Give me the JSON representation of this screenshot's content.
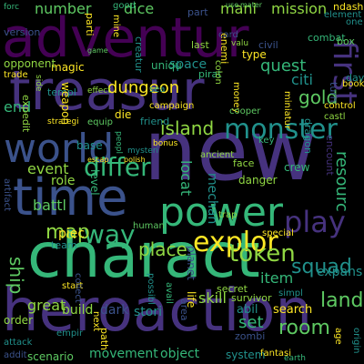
{
  "background": "#000000",
  "palette": {
    "deep_purple": "#440154",
    "indigo": "#46327e",
    "blue_violet": "#3b528b",
    "steel_blue": "#365c8d",
    "teal": "#21918c",
    "green": "#35b779",
    "lime": "#5ec962",
    "light_green": "#90d743",
    "yellow": "#fde725"
  },
  "words": [
    {
      "text": "adventur"
    },
    {
      "text": "treasur"
    },
    {
      "text": "new"
    },
    {
      "text": "charact"
    },
    {
      "text": "heroaction"
    },
    {
      "text": "time"
    },
    {
      "text": "world"
    },
    {
      "text": "power"
    },
    {
      "text": "first"
    },
    {
      "text": "monster"
    },
    {
      "text": "play"
    },
    {
      "text": "differ"
    },
    {
      "text": "explor"
    },
    {
      "text": "way"
    },
    {
      "text": "token"
    },
    {
      "text": "island"
    },
    {
      "text": "map"
    },
    {
      "text": "place"
    },
    {
      "text": "gold"
    },
    {
      "text": "ship"
    },
    {
      "text": "land"
    },
    {
      "text": "room"
    },
    {
      "text": "squad"
    },
    {
      "text": "quest"
    },
    {
      "text": "dungeon"
    },
    {
      "text": "mission"
    },
    {
      "text": "number"
    },
    {
      "text": "dice"
    },
    {
      "text": "mani"
    },
    {
      "text": "good"
    },
    {
      "text": "part"
    },
    {
      "text": "ndash"
    },
    {
      "text": "end"
    },
    {
      "text": "event"
    },
    {
      "text": "role"
    },
    {
      "text": "battl"
    },
    {
      "text": "set"
    },
    {
      "text": "item"
    },
    {
      "text": "expans"
    },
    {
      "text": "resourc"
    },
    {
      "text": "order"
    },
    {
      "text": "skill"
    },
    {
      "text": "stori"
    },
    {
      "text": "dark"
    },
    {
      "text": "great"
    },
    {
      "text": "build"
    },
    {
      "text": "abil"
    },
    {
      "text": "search"
    },
    {
      "text": "system"
    },
    {
      "text": "movement"
    },
    {
      "text": "object"
    },
    {
      "text": "scenario"
    },
    {
      "text": "locat"
    },
    {
      "text": "danger"
    },
    {
      "text": "space"
    },
    {
      "text": "citi"
    },
    {
      "text": "mechan"
    },
    {
      "text": "level"
    },
    {
      "text": "uniqu"
    },
    {
      "text": "magic"
    },
    {
      "text": "opponent"
    },
    {
      "text": "piec"
    },
    {
      "text": "team"
    },
    {
      "text": "life"
    },
    {
      "text": "secret"
    },
    {
      "text": "survivor"
    },
    {
      "text": "human"
    },
    {
      "text": "planet"
    },
    {
      "text": "type"
    },
    {
      "text": "zombi"
    },
    {
      "text": "area"
    },
    {
      "text": "path"
    },
    {
      "text": "face"
    },
    {
      "text": "base"
    },
    {
      "text": "die"
    },
    {
      "text": "strategi"
    },
    {
      "text": "combat"
    },
    {
      "text": "crew"
    },
    {
      "text": "version"
    },
    {
      "text": "forc"
    },
    {
      "text": "parti"
    },
    {
      "text": "creatur"
    },
    {
      "text": "last"
    },
    {
      "text": "enemi"
    },
    {
      "text": "civil"
    },
    {
      "text": "box"
    },
    {
      "text": "element"
    },
    {
      "text": "trade"
    },
    {
      "text": "expedit"
    },
    {
      "text": "templ"
    },
    {
      "text": "weapon"
    },
    {
      "text": "sea"
    },
    {
      "text": "friend"
    },
    {
      "text": "equip"
    },
    {
      "text": "campaign"
    },
    {
      "text": "pirat"
    },
    {
      "text": "money"
    },
    {
      "text": "cooper"
    },
    {
      "text": "ancient"
    },
    {
      "text": "key"
    },
    {
      "text": "miniatur"
    },
    {
      "text": "control"
    },
    {
      "text": "castl"
    },
    {
      "text": "dragon"
    },
    {
      "text": "encount"
    },
    {
      "text": "artifact"
    },
    {
      "text": "attack"
    },
    {
      "text": "addit"
    },
    {
      "text": "empir"
    },
    {
      "text": "start"
    },
    {
      "text": "special"
    },
    {
      "text": "simpl"
    },
    {
      "text": "trap"
    },
    {
      "text": "possibl"
    },
    {
      "text": "avail"
    },
    {
      "text": "fantasi"
    },
    {
      "text": "earth"
    },
    {
      "text": "age"
    },
    {
      "text": "origin"
    },
    {
      "text": "turn"
    },
    {
      "text": "card"
    },
    {
      "text": "mine"
    },
    {
      "text": "peopl"
    },
    {
      "text": "next"
    },
    {
      "text": "collect"
    },
    {
      "text": "side"
    },
    {
      "text": "effect"
    },
    {
      "text": "day"
    },
    {
      "text": "book"
    },
    {
      "text": "colon"
    },
    {
      "text": "one"
    },
    {
      "text": "bonus"
    },
    {
      "text": "mysteri"
    },
    {
      "text": "valu"
    },
    {
      "text": "use"
    },
    {
      "text": "mater"
    },
    {
      "text": "game"
    },
    {
      "text": "escap"
    },
    {
      "text": "polish"
    }
  ]
}
